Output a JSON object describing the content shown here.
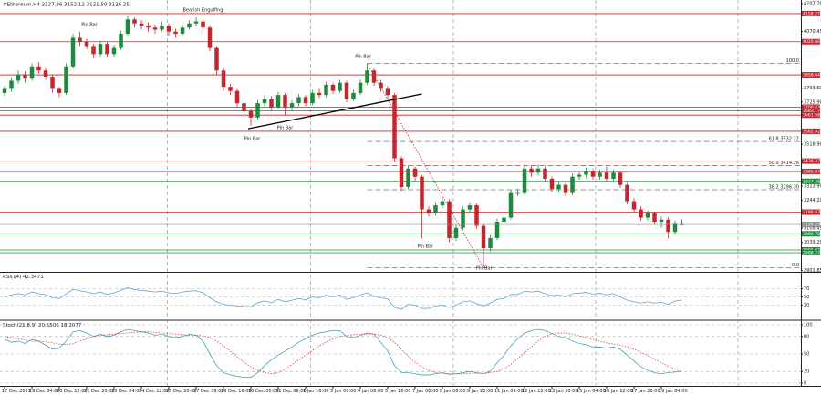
{
  "chart_data": [
    {
      "type": "candlestick",
      "title": "#Ethereum,H4  3127.36 3152.12 3121.50 3126.25",
      "xlim": [
        -0.67,
        116.4
      ],
      "ylim": [
        2890,
        4225
      ],
      "colors": {
        "up": "#1f8a3e",
        "down": "#c4262e"
      },
      "open": [
        3770,
        3790,
        3830,
        3860,
        3840,
        3900,
        3880,
        3850,
        3790,
        3770,
        3900,
        4040,
        4020,
        4000,
        3960,
        4010,
        3960,
        3990,
        4060,
        4130,
        4110,
        4100,
        4090,
        4080,
        4100,
        4070,
        4060,
        4090,
        4110,
        4120,
        4090,
        3990,
        3880,
        3800,
        3780,
        3720,
        3680,
        3650,
        3720,
        3740,
        3700,
        3760,
        3700,
        3720,
        3750,
        3720,
        3770,
        3760,
        3810,
        3780,
        3820,
        3740,
        3770,
        3820,
        3880,
        3820,
        3790,
        3760,
        3450,
        3310,
        3400,
        3360,
        3200,
        3180,
        3220,
        3240,
        3060,
        3110,
        3200,
        3220,
        3120,
        3010,
        3060,
        3140,
        3160,
        3280,
        3280,
        3400,
        3380,
        3400,
        3350,
        3300,
        3320,
        3280,
        3360,
        3370,
        3390,
        3360,
        3380,
        3350,
        3380,
        3320,
        3240,
        3200,
        3160,
        3180,
        3140,
        3150,
        3090,
        3127.36
      ],
      "high": [
        3805,
        3845,
        3880,
        3875,
        3915,
        3920,
        3895,
        3860,
        3800,
        3915,
        4060,
        4070,
        4035,
        4010,
        4025,
        4020,
        4005,
        4075,
        4150,
        4140,
        4125,
        4115,
        4105,
        4120,
        4110,
        4085,
        4105,
        4125,
        4140,
        4130,
        4100,
        4000,
        3895,
        3815,
        3790,
        3735,
        3695,
        3735,
        3760,
        3755,
        3775,
        3770,
        3735,
        3765,
        3760,
        3785,
        3790,
        3825,
        3820,
        3835,
        3830,
        3785,
        3835,
        3914,
        3890,
        3835,
        3805,
        3770,
        3460,
        3415,
        3410,
        3370,
        3215,
        3235,
        3255,
        3250,
        3125,
        3215,
        3235,
        3230,
        3130,
        3075,
        3155,
        3175,
        3295,
        3300,
        3420,
        3415,
        3420,
        3410,
        3360,
        3335,
        3330,
        3375,
        3385,
        3405,
        3400,
        3395,
        3410,
        3395,
        3390,
        3330,
        3255,
        3215,
        3195,
        3190,
        3165,
        3160,
        3145,
        3152.12
      ],
      "low": [
        3755,
        3775,
        3815,
        3820,
        3830,
        3865,
        3835,
        3770,
        3750,
        3760,
        3890,
        4000,
        3985,
        3940,
        3950,
        3945,
        3945,
        3980,
        4050,
        4090,
        4080,
        4070,
        4060,
        4070,
        4050,
        4040,
        4050,
        4080,
        4095,
        4070,
        3975,
        3860,
        3780,
        3760,
        3700,
        3660,
        3610,
        3640,
        3705,
        3685,
        3690,
        3660,
        3685,
        3705,
        3705,
        3710,
        3745,
        3750,
        3765,
        3770,
        3725,
        3730,
        3760,
        3810,
        3805,
        3775,
        3740,
        3430,
        3290,
        3300,
        3340,
        3060,
        3165,
        3170,
        3205,
        3040,
        3045,
        3100,
        3185,
        3105,
        2914,
        2995,
        3050,
        3125,
        3150,
        3265,
        3270,
        3360,
        3365,
        3335,
        3285,
        3285,
        3265,
        3270,
        3345,
        3355,
        3345,
        3345,
        3335,
        3340,
        3305,
        3225,
        3185,
        3145,
        3145,
        3125,
        3110,
        3060,
        3075,
        3121.5
      ],
      "close": [
        3790,
        3830,
        3860,
        3840,
        3900,
        3880,
        3850,
        3790,
        3770,
        3900,
        4040,
        4020,
        4000,
        3960,
        4010,
        3960,
        3990,
        4060,
        4130,
        4110,
        4100,
        4090,
        4080,
        4100,
        4070,
        4060,
        4090,
        4110,
        4120,
        4090,
        3990,
        3880,
        3800,
        3780,
        3720,
        3680,
        3650,
        3720,
        3740,
        3700,
        3760,
        3700,
        3720,
        3750,
        3720,
        3770,
        3760,
        3810,
        3780,
        3820,
        3740,
        3770,
        3820,
        3880,
        3820,
        3790,
        3760,
        3450,
        3310,
        3400,
        3360,
        3200,
        3180,
        3220,
        3240,
        3060,
        3110,
        3200,
        3220,
        3120,
        3010,
        3060,
        3140,
        3160,
        3280,
        3280,
        3400,
        3380,
        3400,
        3350,
        3300,
        3320,
        3280,
        3360,
        3370,
        3390,
        3360,
        3380,
        3350,
        3380,
        3320,
        3240,
        3200,
        3160,
        3180,
        3140,
        3150,
        3090,
        3130,
        3126.25
      ],
      "yticks": [
        {
          "value": 4207.7,
          "label": "4207.70"
        },
        4070.45,
        {
          "value": 3793.6,
          "label": "3793.60"
        },
        {
          "value": 3725.9,
          "label": "3725.90"
        },
        {
          "value": 3518.9,
          "label": "3518.90"
        },
        {
          "value": 3313.9,
          "label": "3313.90"
        },
        {
          "value": 3244.2,
          "label": "3244.20"
        },
        3108.45,
        {
          "value": 3039.2,
          "label": "3039.20"
        },
        2901.85
      ],
      "xticks": [
        {
          "value": 0,
          "label": "17 Dec 2021"
        },
        {
          "value": 4,
          "label": "19 Dec 04:00"
        },
        {
          "value": 8,
          "label": "20 Dec 12:00"
        },
        {
          "value": 12,
          "label": "21 Dec 20:00"
        },
        {
          "value": 16,
          "label": "23 Dec 04:00"
        },
        {
          "value": 20,
          "label": "24 Dec 12:00"
        },
        {
          "value": 24,
          "label": "25 Dec 20:00"
        },
        {
          "value": 28,
          "label": "27 Dec 08:00"
        },
        {
          "value": 32,
          "label": "28 Dec 16:00"
        },
        {
          "value": 36,
          "label": "30 Dec 00:00"
        },
        {
          "value": 40,
          "label": "31 Dec 08:00"
        },
        {
          "value": 44,
          "label": "1 Jan 16:00"
        },
        {
          "value": 48,
          "label": "3 Jan 00:00"
        },
        {
          "value": 52,
          "label": "4 Jan 08:00"
        },
        {
          "value": 56,
          "label": "5 Jan 16:00"
        },
        {
          "value": 60,
          "label": "7 Jan 00:00"
        },
        {
          "value": 64,
          "label": "8 Jan 08:00"
        },
        {
          "value": 68,
          "label": "9 Jan 20:00"
        },
        {
          "value": 72,
          "label": "11 Jan 04:00"
        },
        {
          "value": 76,
          "label": "12 Jan 12:00"
        },
        {
          "value": 80,
          "label": "13 Jan 20:00"
        },
        {
          "value": 84,
          "label": "15 Jan 04:00"
        },
        {
          "value": 88,
          "label": "16 Jan 12:00"
        },
        {
          "value": 92,
          "label": "17 Jan 20:00"
        },
        {
          "value": 96,
          "label": "19 Jan 04:00"
        }
      ],
      "xgrid": [
        23.8,
        44.7,
        65.6,
        86.4,
        107.2
      ],
      "levels": [
        {
          "value": 4158.27,
          "color": "#c4262e"
        },
        {
          "value": 4020.86,
          "color": "#c4262e"
        },
        {
          "value": 3858.64,
          "color": "#c4262e"
        },
        {
          "value": 3700.43,
          "color": "#c4262e"
        },
        {
          "value": 3683.17,
          "color": "#c4262e"
        },
        {
          "value": 3661.58,
          "color": "#c4262e"
        },
        {
          "value": 3582.42,
          "color": "#c4262e"
        },
        {
          "value": 3436.37,
          "color": "#c4262e"
        },
        {
          "value": 3385.87,
          "color": "#c4262e"
        },
        {
          "value": 3337.45,
          "color": "#1f8a3e"
        },
        {
          "value": 3186.83,
          "color": "#c4262e"
        },
        {
          "value": 3080.78,
          "color": "#1f8a3e"
        },
        {
          "value": 3001.62,
          "color": "#1f8a3e"
        },
        {
          "value": 2988.27,
          "color": "#1f8a3e"
        }
      ],
      "price_line_color": "#8c8c8c",
      "fibonacci": {
        "x": [
          53,
          70
        ],
        "color": "#777777",
        "diagonal_color": "#c4262e",
        "levels": [
          {
            "label": "100.0",
            "value": 3914
          },
          {
            "label": "61.8  3532.22",
            "value": 3532.22
          },
          {
            "label": "50.0  3414.26",
            "value": 3414.26
          },
          {
            "label": "38.2  3296.30",
            "value": 3296.3
          },
          {
            "label": "0.0",
            "value": 2914
          }
        ]
      },
      "trendline": {
        "x": [
          35.6,
          61
        ],
        "y": [
          3595,
          3765
        ],
        "color": "#000000"
      },
      "annotations": [
        {
          "text": "Pin Bar",
          "x": 12.4,
          "y": 4104
        },
        {
          "text": "Bearish Engulfing",
          "x": 29,
          "y": 4176
        },
        {
          "text": "Pin Bar",
          "x": 52.4,
          "y": 3948
        },
        {
          "text": "Pin Bar",
          "x": 36.2,
          "y": 3546
        },
        {
          "text": "Pin Bar",
          "x": 41,
          "y": 3600
        },
        {
          "text": "Pin Bar",
          "x": 61.5,
          "y": 3020
        },
        {
          "text": "Pin Bar",
          "x": 70.1,
          "y": 2912
        }
      ]
    },
    {
      "type": "line",
      "title": "RSI(14) 42.3471",
      "xlim": [
        -0.67,
        116.4
      ],
      "ylim": [
        0,
        100
      ],
      "yticks": [
        30,
        50,
        70
      ],
      "series": [
        {
          "color": "#5ea6cf",
          "dash": false,
          "values": [
            50,
            55,
            58,
            55,
            62,
            58,
            55,
            48,
            46,
            58,
            68,
            65,
            62,
            58,
            62,
            56,
            60,
            66,
            72,
            68,
            66,
            64,
            62,
            64,
            60,
            58,
            62,
            64,
            65,
            60,
            48,
            38,
            32,
            30,
            28,
            27,
            26,
            36,
            40,
            36,
            44,
            38,
            42,
            46,
            43,
            50,
            48,
            54,
            50,
            55,
            44,
            48,
            55,
            60,
            52,
            48,
            45,
            25,
            20,
            32,
            30,
            22,
            22,
            28,
            30,
            24,
            30,
            38,
            40,
            34,
            28,
            35,
            44,
            46,
            56,
            56,
            64,
            62,
            64,
            58,
            53,
            55,
            50,
            58,
            59,
            61,
            57,
            59,
            55,
            58,
            50,
            42,
            38,
            35,
            38,
            35,
            37,
            32,
            40,
            42.3471
          ]
        }
      ]
    },
    {
      "type": "line",
      "title": "Stoch(21,8,9) 20.5506 18.2077",
      "xlim": [
        -0.67,
        116.4
      ],
      "ylim": [
        0,
        100
      ],
      "yticks": [
        0,
        20,
        50,
        80,
        100
      ],
      "series": [
        {
          "color": "#4aa0b8",
          "dash": false,
          "values": [
            75,
            70,
            72,
            68,
            75,
            72,
            65,
            58,
            60,
            72,
            88,
            90,
            86,
            80,
            84,
            80,
            82,
            88,
            92,
            90,
            88,
            86,
            82,
            84,
            80,
            78,
            80,
            84,
            82,
            72,
            50,
            30,
            18,
            14,
            12,
            10,
            10,
            18,
            30,
            40,
            48,
            55,
            62,
            70,
            76,
            82,
            86,
            88,
            90,
            90,
            80,
            78,
            82,
            86,
            84,
            70,
            55,
            30,
            18,
            18,
            16,
            14,
            14,
            16,
            18,
            15,
            16,
            18,
            20,
            18,
            16,
            20,
            35,
            48,
            64,
            76,
            86,
            90,
            92,
            90,
            85,
            80,
            78,
            72,
            68,
            66,
            62,
            62,
            60,
            62,
            58,
            48,
            38,
            28,
            22,
            18,
            16,
            18,
            19,
            20.5506
          ]
        },
        {
          "color": "#d0454c",
          "dash": true,
          "values": [
            80,
            78,
            76,
            74,
            72,
            72,
            71,
            69,
            67,
            66,
            68,
            72,
            76,
            80,
            82,
            83,
            84,
            85,
            86,
            87,
            88,
            88,
            87,
            86,
            85,
            84,
            83,
            82,
            82,
            81,
            78,
            72,
            64,
            55,
            45,
            36,
            28,
            22,
            18,
            16,
            18,
            24,
            32,
            40,
            48,
            56,
            64,
            70,
            76,
            80,
            82,
            83,
            84,
            84,
            84,
            82,
            78,
            70,
            58,
            46,
            36,
            28,
            22,
            18,
            17,
            16,
            16,
            16,
            17,
            17,
            17,
            18,
            20,
            25,
            32,
            42,
            52,
            62,
            72,
            80,
            84,
            86,
            86,
            84,
            81,
            78,
            75,
            72,
            69,
            67,
            65,
            62,
            58,
            53,
            47,
            41,
            35,
            29,
            24,
            18.2077
          ]
        }
      ]
    }
  ]
}
